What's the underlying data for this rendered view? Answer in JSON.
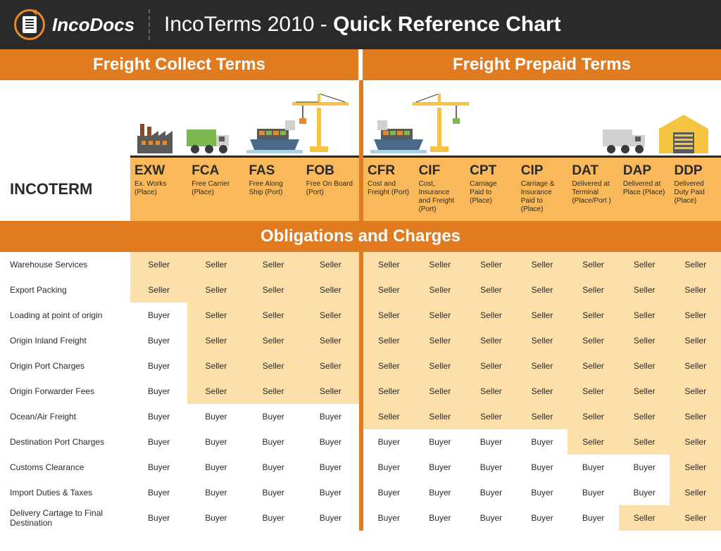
{
  "brand": "IncoDocs",
  "title_light": "IncoTerms 2010 - ",
  "title_bold": "Quick Reference Chart",
  "sections": {
    "left": "Freight Collect Terms",
    "right": "Freight Prepaid Terms"
  },
  "incoterm_label": "INCOTERM",
  "obligations_header": "Obligations and Charges",
  "colors": {
    "header_bg": "#2a2a2a",
    "accent": "#e07b1f",
    "seller_bg": "#fcdfa9",
    "buyer_bg": "#ffffff",
    "term_row_bg": "#f9b95a"
  },
  "collect_terms": [
    {
      "code": "EXW",
      "desc": "Ex. Works (Place)"
    },
    {
      "code": "FCA",
      "desc": "Free Carrier (Place)"
    },
    {
      "code": "FAS",
      "desc": "Free Along Ship (Port)"
    },
    {
      "code": "FOB",
      "desc": "Free On Board (Port)"
    }
  ],
  "prepaid_terms": [
    {
      "code": "CFR",
      "desc": "Cost and Freight (Port)"
    },
    {
      "code": "CIF",
      "desc": "Cost, Insurance and Freight (Port)"
    },
    {
      "code": "CPT",
      "desc": "Carriage Paid to (Place)"
    },
    {
      "code": "CIP",
      "desc": "Carriage & Insurance Paid to (Place)"
    },
    {
      "code": "DAT",
      "desc": "Delivered at Terminal (Place/Port )"
    },
    {
      "code": "DAP",
      "desc": "Delivered at Place (Place)"
    },
    {
      "code": "DDP",
      "desc": "Delivered Duty Paid (Place)"
    }
  ],
  "rows": [
    {
      "label": "Warehouse Services",
      "v": [
        "Seller",
        "Seller",
        "Seller",
        "Seller",
        "Seller",
        "Seller",
        "Seller",
        "Seller",
        "Seller",
        "Seller",
        "Seller"
      ]
    },
    {
      "label": "Export Packing",
      "v": [
        "Seller",
        "Seller",
        "Seller",
        "Seller",
        "Seller",
        "Seller",
        "Seller",
        "Seller",
        "Seller",
        "Seller",
        "Seller"
      ]
    },
    {
      "label": "Loading at point of origin",
      "v": [
        "Buyer",
        "Seller",
        "Seller",
        "Seller",
        "Seller",
        "Seller",
        "Seller",
        "Seller",
        "Seller",
        "Seller",
        "Seller"
      ]
    },
    {
      "label": "Origin Inland Freight",
      "v": [
        "Buyer",
        "Seller",
        "Seller",
        "Seller",
        "Seller",
        "Seller",
        "Seller",
        "Seller",
        "Seller",
        "Seller",
        "Seller"
      ]
    },
    {
      "label": "Origin Port Charges",
      "v": [
        "Buyer",
        "Seller",
        "Seller",
        "Seller",
        "Seller",
        "Seller",
        "Seller",
        "Seller",
        "Seller",
        "Seller",
        "Seller"
      ]
    },
    {
      "label": "Origin Forwarder Fees",
      "v": [
        "Buyer",
        "Seller",
        "Seller",
        "Seller",
        "Seller",
        "Seller",
        "Seller",
        "Seller",
        "Seller",
        "Seller",
        "Seller"
      ]
    },
    {
      "label": "Ocean/Air Freight",
      "v": [
        "Buyer",
        "Buyer",
        "Buyer",
        "Buyer",
        "Seller",
        "Seller",
        "Seller",
        "Seller",
        "Seller",
        "Seller",
        "Seller"
      ]
    },
    {
      "label": "Destination Port Charges",
      "v": [
        "Buyer",
        "Buyer",
        "Buyer",
        "Buyer",
        "Buyer",
        "Buyer",
        "Buyer",
        "Buyer",
        "Seller",
        "Seller",
        "Seller"
      ]
    },
    {
      "label": "Customs Clearance",
      "v": [
        "Buyer",
        "Buyer",
        "Buyer",
        "Buyer",
        "Buyer",
        "Buyer",
        "Buyer",
        "Buyer",
        "Buyer",
        "Buyer",
        "Seller"
      ]
    },
    {
      "label": "Import Duties & Taxes",
      "v": [
        "Buyer",
        "Buyer",
        "Buyer",
        "Buyer",
        "Buyer",
        "Buyer",
        "Buyer",
        "Buyer",
        "Buyer",
        "Buyer",
        "Seller"
      ]
    },
    {
      "label": "Delivery Cartage to Final Destination",
      "v": [
        "Buyer",
        "Buyer",
        "Buyer",
        "Buyer",
        "Buyer",
        "Buyer",
        "Buyer",
        "Buyer",
        "Buyer",
        "Seller",
        "Seller"
      ]
    }
  ]
}
